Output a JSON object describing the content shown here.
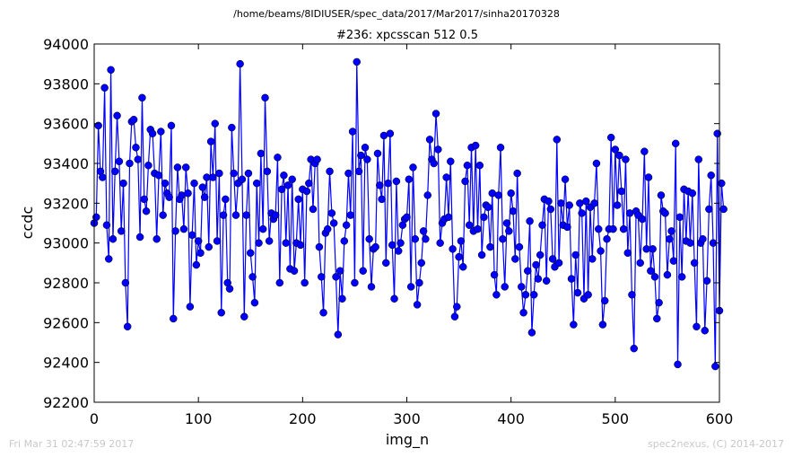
{
  "page": {
    "suptitle": "/home/beams/8IDIUSER/spec_data/2017/Mar2017/sinha20170328",
    "footer_left": "Fri Mar 31 02:47:59 2017",
    "footer_right": "spec2nexus, (C) 2014-2017"
  },
  "chart_data": {
    "type": "line",
    "title": "#236: xpcsscan 512 0.5",
    "xlabel": "img_n",
    "ylabel": "ccdc",
    "xlim": [
      0,
      600
    ],
    "ylim": [
      92200,
      94000
    ],
    "xticks": [
      0,
      100,
      200,
      300,
      400,
      500,
      600
    ],
    "yticks": [
      92200,
      92400,
      92600,
      92800,
      93000,
      93200,
      93400,
      93600,
      93800,
      94000
    ],
    "grid": false,
    "marker": "circle",
    "color": "#0000ff",
    "x_start": 0,
    "x_step": 2,
    "series": [
      {
        "values": [
          93100,
          93130,
          93590,
          93360,
          93330,
          93780,
          93090,
          92920,
          93870,
          93020,
          93360,
          93640,
          93410,
          93060,
          93300,
          92800,
          92580,
          93400,
          93610,
          93620,
          93480,
          93420,
          93030,
          93730,
          93220,
          93160,
          93390,
          93570,
          93550,
          93350,
          93020,
          93340,
          93560,
          93140,
          93300,
          93250,
          93230,
          93590,
          92620,
          93060,
          93380,
          93220,
          93240,
          93070,
          93380,
          93250,
          92680,
          93040,
          93300,
          92890,
          93010,
          92950,
          93280,
          93230,
          93330,
          92980,
          93510,
          93330,
          93600,
          93010,
          93350,
          92650,
          93140,
          93220,
          92800,
          92770,
          93580,
          93350,
          93140,
          93300,
          93900,
          93320,
          92630,
          93140,
          93350,
          92950,
          92830,
          92700,
          93300,
          93000,
          93450,
          93070,
          93730,
          93360,
          93010,
          93150,
          93120,
          93140,
          93430,
          92800,
          93270,
          93340,
          93000,
          93290,
          92870,
          93320,
          92860,
          93000,
          93220,
          92990,
          93270,
          92800,
          93260,
          93300,
          93420,
          93170,
          93400,
          93420,
          92980,
          92830,
          92650,
          93050,
          93070,
          93360,
          93150,
          93100,
          92830,
          92540,
          92860,
          92720,
          93010,
          93090,
          93350,
          93140,
          93560,
          92800,
          93910,
          93360,
          93440,
          92860,
          93480,
          93420,
          93020,
          92780,
          92970,
          92980,
          93450,
          93290,
          93220,
          93540,
          92900,
          93300,
          93550,
          92990,
          92720,
          93310,
          92960,
          93000,
          93090,
          93120,
          93130,
          93320,
          92780,
          93380,
          93020,
          92690,
          92800,
          92900,
          93060,
          93020,
          93240,
          93520,
          93420,
          93400,
          93650,
          93470,
          93000,
          93100,
          93120,
          93330,
          93130,
          93410,
          92970,
          92630,
          92680,
          92930,
          93010,
          92880,
          93310,
          93390,
          93090,
          93480,
          93060,
          93490,
          93070,
          93390,
          92940,
          93130,
          93190,
          93180,
          92980,
          93250,
          92840,
          92740,
          93240,
          93480,
          93020,
          92780,
          93100,
          93060,
          93250,
          93160,
          92920,
          93350,
          92980,
          92780,
          92650,
          92740,
          92860,
          93110,
          92550,
          92740,
          92890,
          92820,
          92940,
          93090,
          93220,
          92810,
          93210,
          93170,
          92920,
          92880,
          93520,
          92900,
          93200,
          93090,
          93320,
          93080,
          93190,
          92820,
          92590,
          92940,
          92750,
          93200,
          93150,
          92720,
          93210,
          92740,
          93180,
          92920,
          93200,
          93400,
          93070,
          92960,
          92590,
          92710,
          93020,
          93070,
          93530,
          93070,
          93470,
          93190,
          93440,
          93260,
          93070,
          93420,
          92950,
          93150,
          92740,
          92470,
          93160,
          93140,
          92900,
          93120,
          93460,
          92970,
          93330,
          92860,
          92970,
          92830,
          92620,
          92700,
          93240,
          93160,
          93150,
          92840,
          93020,
          93060,
          92910,
          93500,
          92390,
          93130,
          92830,
          93270,
          93010,
          93260,
          93000,
          93250,
          92900,
          92580,
          93420,
          93000,
          93020,
          92560,
          92810,
          93170,
          93340,
          93000,
          92380,
          93550,
          92660,
          93300,
          93170
        ]
      }
    ]
  }
}
